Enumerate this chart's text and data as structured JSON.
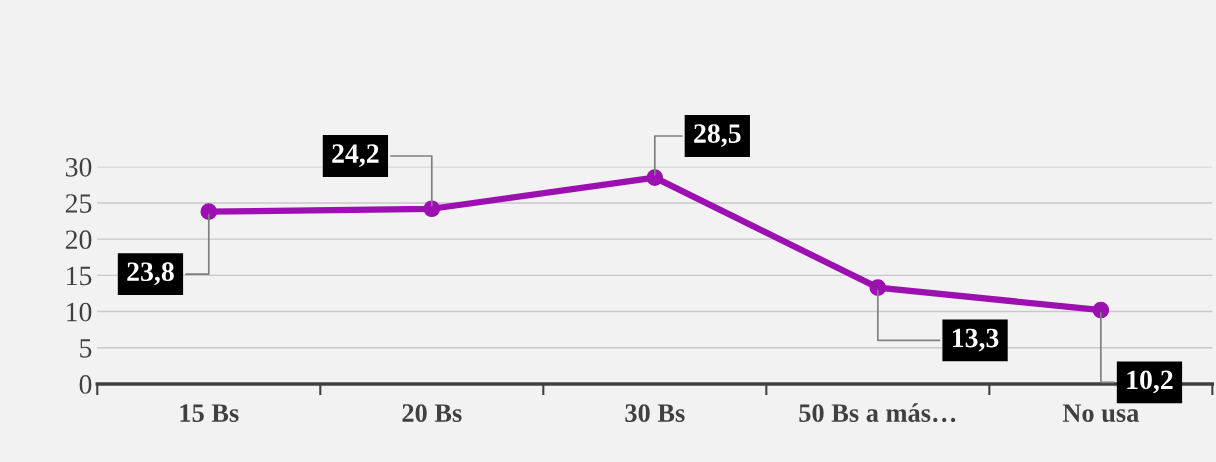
{
  "chart_data": {
    "type": "line",
    "categories": [
      "15 Bs",
      "20 Bs",
      "30 Bs",
      "50 Bs a más…",
      "No usa"
    ],
    "series": [
      {
        "color": "#9c0fb0",
        "values": [
          23.8,
          24.2,
          28.5,
          13.3,
          10.2
        ],
        "value_labels": [
          "23,8",
          "24,2",
          "28,5",
          "13,3",
          "10,2"
        ]
      }
    ],
    "ylim": [
      0,
      30
    ],
    "yticks": [
      0,
      5,
      10,
      15,
      20,
      25,
      30
    ],
    "grid": "y",
    "marker": "circle",
    "line_style": "solid"
  }
}
